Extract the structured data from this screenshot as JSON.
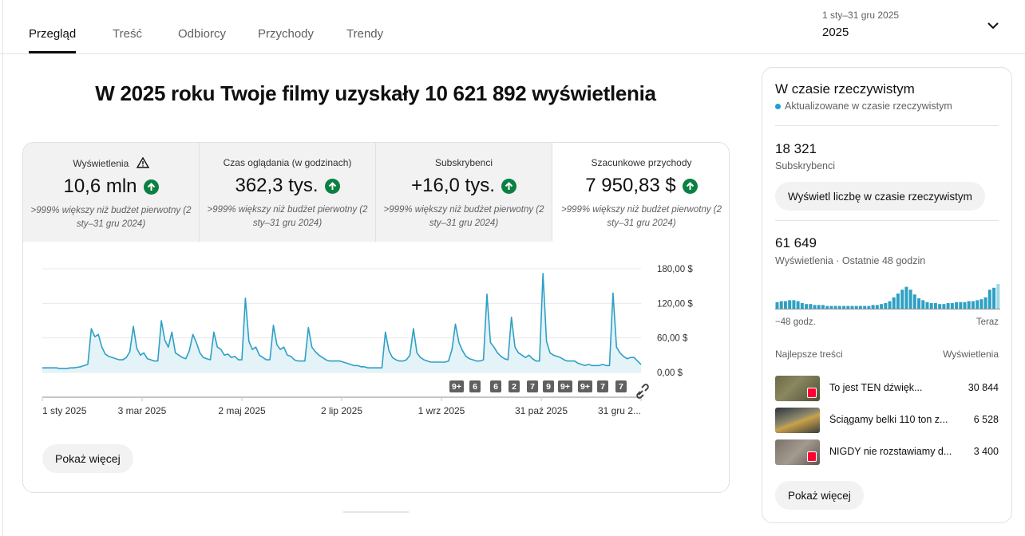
{
  "tabs": [
    {
      "label": "Przegląd"
    },
    {
      "label": "Treść"
    },
    {
      "label": "Odbiorcy"
    },
    {
      "label": "Przychody"
    },
    {
      "label": "Trendy"
    }
  ],
  "date_range": {
    "range": "1 sty–31 gru 2025",
    "label": "2025"
  },
  "headline": "W 2025 roku Twoje filmy uzyskały 10 621 892 wyświetlenia",
  "metrics": [
    {
      "label": "Wyświetlenia",
      "value": "10,6 mln",
      "comparison": ">999% większy niż budżet pierwotny (2 sty–31 gru 2024)",
      "warning": true
    },
    {
      "label": "Czas oglądania (w godzinach)",
      "value": "362,3 tys.",
      "comparison": ">999% większy niż budżet pierwotny (2 sty–31 gru 2024)"
    },
    {
      "label": "Subskrybenci",
      "value": "+16,0 tys.",
      "comparison": ">999% większy niż budżet pierwotny (2 sty–31 gru 2024)"
    },
    {
      "label": "Szacunkowe przychody",
      "value": "7 950,83 $",
      "comparison": ">999% większy niż budżet pierwotny (2 sty–31 gru 2024)"
    }
  ],
  "chart_data": {
    "type": "area",
    "series": [
      {
        "values": [
          8,
          8,
          8,
          8,
          8,
          7,
          7,
          7,
          8,
          8,
          9,
          10,
          12,
          14,
          76,
          62,
          66,
          44,
          32,
          28,
          26,
          24,
          22,
          22,
          26,
          36,
          80,
          42,
          30,
          34,
          24,
          22,
          20,
          20,
          90,
          56,
          44,
          70,
          34,
          30,
          26,
          24,
          38,
          66,
          52,
          34,
          26,
          24,
          22,
          70,
          44,
          40,
          30,
          32,
          26,
          28,
          22,
          22,
          129,
          54,
          40,
          44,
          30,
          26,
          22,
          22,
          82,
          48,
          40,
          44,
          30,
          28,
          22,
          20,
          20,
          20,
          78,
          44,
          36,
          30,
          26,
          22,
          20,
          20,
          20,
          20,
          18,
          16,
          14,
          12,
          12,
          10,
          10,
          8,
          8,
          8,
          8,
          8,
          70,
          38,
          26,
          22,
          20,
          20,
          22,
          30,
          76,
          34,
          26,
          22,
          20,
          18,
          18,
          18,
          18,
          18,
          20,
          40,
          84,
          52,
          38,
          28,
          24,
          22,
          20,
          20,
          22,
          136,
          52,
          44,
          34,
          28,
          24,
          22,
          96,
          44,
          34,
          30,
          26,
          30,
          24,
          20,
          20,
          172,
          54,
          34,
          30,
          28,
          26,
          22,
          20,
          20,
          20,
          16,
          14,
          12,
          14,
          12,
          12,
          12,
          14,
          12,
          12,
          138,
          44,
          34,
          28,
          24,
          26,
          26,
          20,
          14
        ]
      }
    ],
    "x_tick_labels": [
      "1 sty 2025",
      "3 mar 2025",
      "2 maj 2025",
      "2 lip 2025",
      "1 wrz 2025",
      "31 paź 2025",
      "31 gru 2..."
    ],
    "y_tick_labels": [
      "180,00 $",
      "120,00 $",
      "60,00 $",
      "0,00 $"
    ],
    "ylim": [
      0,
      180
    ],
    "markers": [
      "9+",
      "6",
      "6",
      "2",
      "7",
      "9",
      "9+",
      "9+",
      "7",
      "7",
      "link"
    ]
  },
  "show_more_label": "Pokaż więcej",
  "realtime": {
    "title": "W czasie rzeczywistym",
    "live_label": "Aktualizowane w czasie rzeczywistym",
    "subscribers": {
      "value": "18 321",
      "label": "Subskrybenci"
    },
    "realtime_button": "Wyświetl liczbę w czasie rzeczywistym",
    "views": {
      "value": "61 649",
      "label": "Wyświetlenia · Ostatnie 48 godzin"
    },
    "bars": [
      6,
      7,
      7,
      8,
      8,
      7,
      5,
      4,
      4,
      3,
      3,
      3,
      2,
      2,
      2,
      2,
      2,
      2,
      2,
      2,
      2,
      2,
      2,
      3,
      3,
      4,
      5,
      7,
      11,
      15,
      19,
      22,
      19,
      14,
      10,
      8,
      6,
      5,
      5,
      4,
      4,
      5,
      5,
      6,
      6,
      6,
      7,
      7,
      8,
      9,
      11,
      19,
      21,
      25
    ],
    "axis_start": "−48 godz.",
    "axis_end": "Teraz",
    "top_content_label": "Najlepsze treści",
    "views_col_label": "Wyświetlenia",
    "top_content": [
      {
        "title": "To jest TEN dźwięk...",
        "views": "30 844"
      },
      {
        "title": "Ściągamy belki 110 ton z...",
        "views": "6 528"
      },
      {
        "title": "NIGDY nie rozstawiamy d...",
        "views": "3 400"
      }
    ],
    "show_more_label": "Pokaż więcej"
  }
}
